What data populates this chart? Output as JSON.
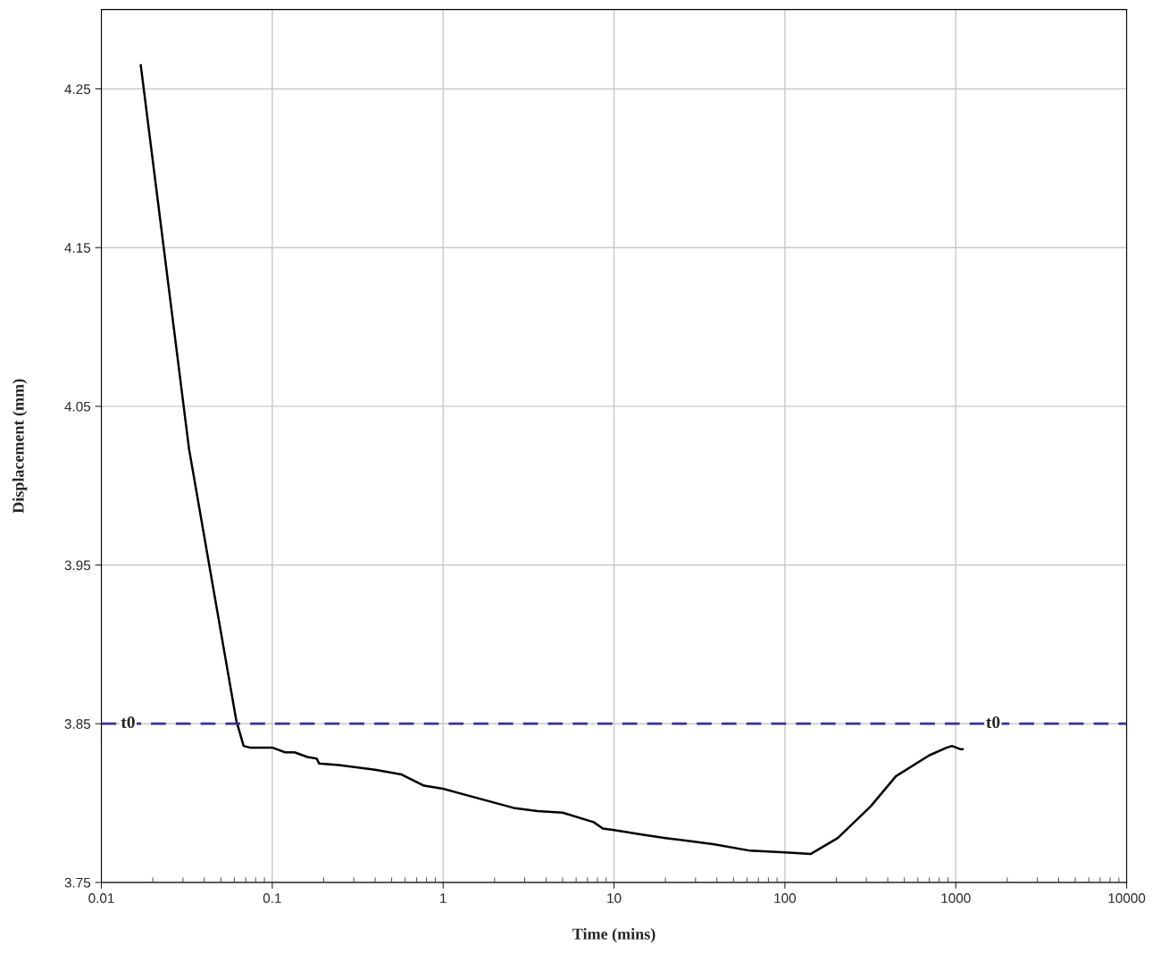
{
  "chart_data": {
    "type": "line",
    "xlabel": "Time (mins)",
    "ylabel": "Displacement (mm)",
    "log": "x",
    "grid": true,
    "marker": "none",
    "line_style": "solid",
    "xlim": [
      0.01,
      10000
    ],
    "ylim": [
      3.75,
      4.3
    ],
    "xticks": [
      {
        "value": 0.01,
        "label": "0.01"
      },
      {
        "value": 0.1,
        "label": "0.1"
      },
      {
        "value": 1,
        "label": "1"
      },
      {
        "value": 10,
        "label": "10"
      },
      {
        "value": 100,
        "label": "100"
      },
      {
        "value": 1000,
        "label": "1000"
      },
      {
        "value": 10000,
        "label": "10000"
      }
    ],
    "yticks": [
      3.75,
      3.85,
      3.95,
      4.05,
      4.15,
      4.25
    ],
    "series": [
      {
        "color": "#000000",
        "x": [
          0.017,
          0.0326,
          0.0616,
          0.068,
          0.074,
          0.094,
          0.1,
          0.119,
          0.135,
          0.161,
          0.182,
          0.188,
          0.246,
          0.4,
          0.571,
          0.773,
          1.0,
          2.58,
          3.56,
          5.0,
          7.6,
          8.6,
          10,
          14.8,
          20,
          38.7,
          62.7,
          100,
          142,
          204,
          318,
          447,
          697,
          887,
          950,
          1062,
          1100
        ],
        "values": [
          4.265,
          4.023,
          3.852,
          3.836,
          3.835,
          3.835,
          3.835,
          3.832,
          3.832,
          3.829,
          3.828,
          3.825,
          3.824,
          3.821,
          3.818,
          3.811,
          3.809,
          3.797,
          3.795,
          3.794,
          3.788,
          3.784,
          3.783,
          3.78,
          3.778,
          3.774,
          3.77,
          3.769,
          3.768,
          3.778,
          3.798,
          3.817,
          3.83,
          3.835,
          3.836,
          3.834,
          3.834
        ]
      }
    ],
    "ref_lines": [
      {
        "axis": "y",
        "value": 3.85,
        "color": "#333399",
        "line_style": "dashed"
      }
    ],
    "annotations": [
      {
        "text": "t0",
        "x": 0.013,
        "y": 3.85
      },
      {
        "text": "t0",
        "x": 1500,
        "y": 3.85
      }
    ]
  }
}
